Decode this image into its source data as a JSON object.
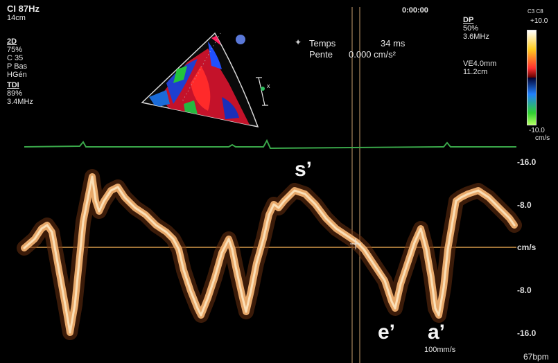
{
  "header": {
    "ci": "CI 87Hz",
    "depth": "14cm",
    "time": "0:00:00",
    "probe": "C3 C8"
  },
  "left_params": {
    "mode_2d": "2D",
    "gain_2d": " 75%",
    "c": "C 35",
    "p": "P Bas",
    "h": "HGén",
    "mode_tdi": "TDI",
    "gain_tdi": " 89%",
    "freq_tdi": "3.4MHz"
  },
  "right_params": {
    "mode_dp": "DP",
    "gain_dp": " 50%",
    "freq_dp": "3.6MHz",
    "ve": "VE4.0mm",
    "depth_ve": "11.2cm"
  },
  "measure": {
    "temps_label": "Temps",
    "temps_value": "34 ms",
    "pente_label": "Pente",
    "pente_value": "0.000 cm/s²"
  },
  "colorbar": {
    "top": "+10.0",
    "bottom": "-10.0",
    "unit": "cm/s",
    "colors": {
      "positive": "#ff3030",
      "negative": "#2080ff",
      "variance": "#30d030"
    }
  },
  "scale": {
    "p16": "-16.0",
    "p8": "-8.0",
    "unit": "cm/s",
    "m8": "-8.0",
    "m16": "-16.0"
  },
  "waves": {
    "s_prime": "s’",
    "e_prime": "e’",
    "a_prime": "a’"
  },
  "footer": {
    "sweep": "100mm/s",
    "heart_rate": "67bpm"
  },
  "colors": {
    "baseline": "#d89a4a",
    "ecg": "#3aa84a",
    "spectrum": "#f2c48a",
    "cursor": "#caa070"
  }
}
